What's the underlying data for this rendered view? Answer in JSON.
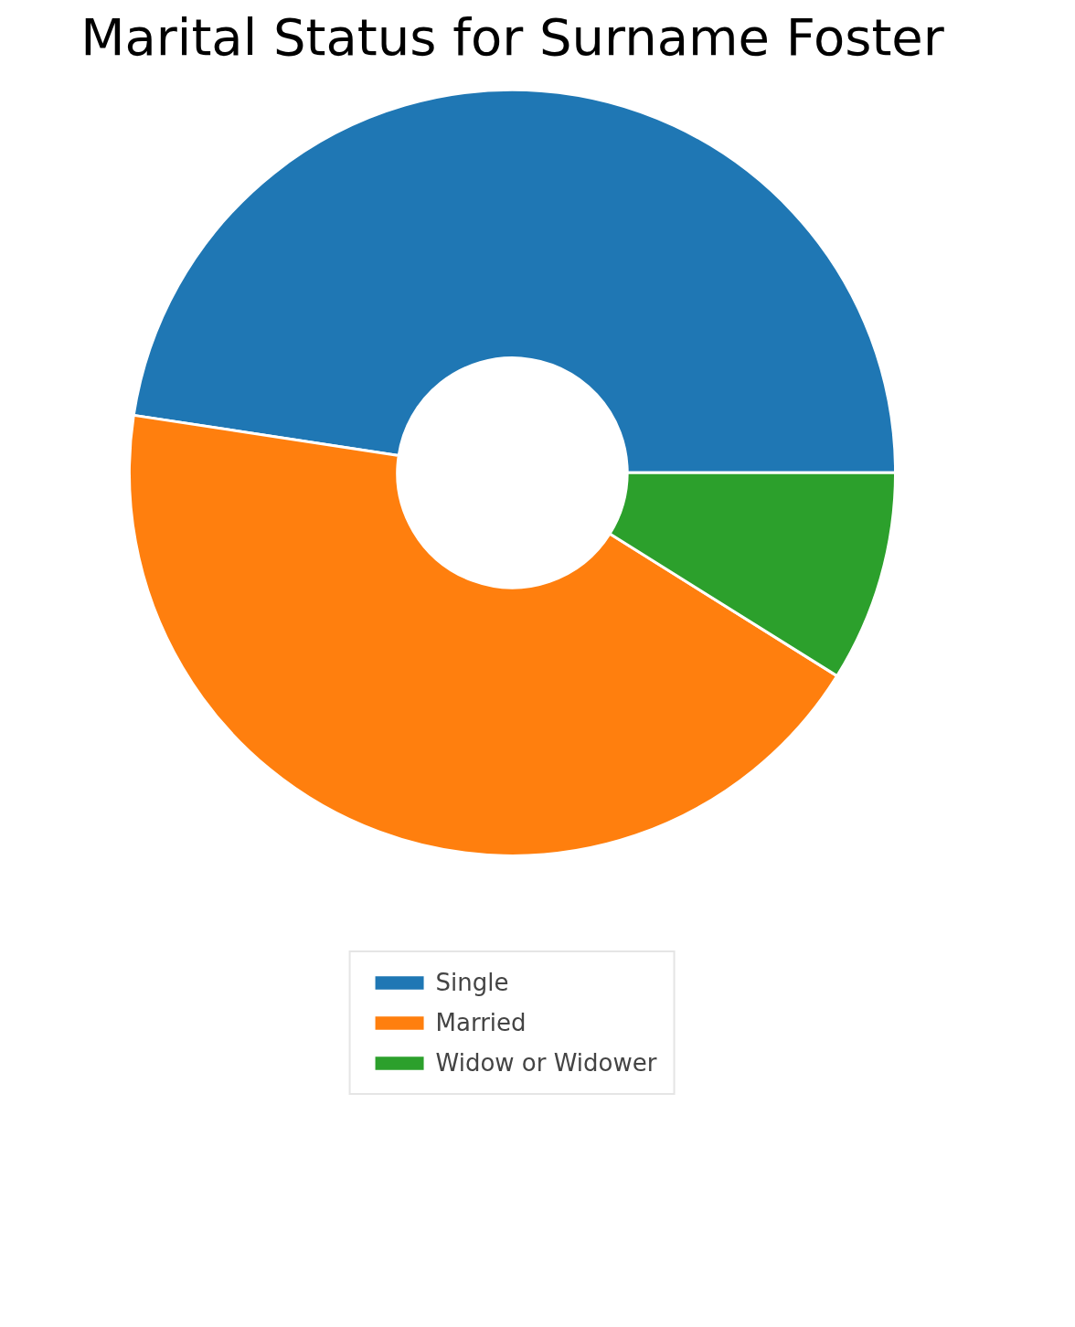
{
  "chart_data": {
    "type": "donut",
    "title": "Marital Status for Surname Foster",
    "categories": [
      "Single",
      "Married",
      "Widow or Widower"
    ],
    "values": [
      47.6,
      43.5,
      8.9
    ],
    "colors": [
      "#1f77b4",
      "#ff7f0e",
      "#2ca02c"
    ],
    "legend": "bottom"
  }
}
